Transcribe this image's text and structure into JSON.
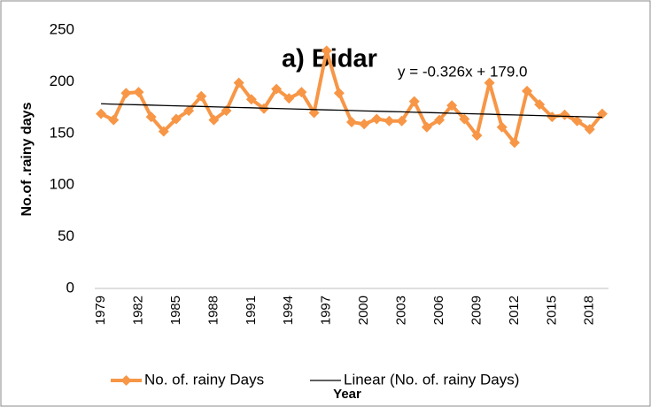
{
  "chart_data": {
    "type": "line",
    "title": "a) Bidar",
    "annotation": "y = -0.326x + 179.0",
    "x_label": "Year",
    "y_label": "No.of .rainy days",
    "categories": [
      "1979",
      null,
      null,
      "1982",
      null,
      null,
      "1985",
      null,
      null,
      "1988",
      null,
      null,
      "1991",
      null,
      null,
      "1994",
      null,
      null,
      "1997",
      null,
      null,
      "2000",
      null,
      null,
      "2003",
      null,
      null,
      "2006",
      null,
      null,
      "2009",
      null,
      null,
      "2012",
      null,
      null,
      "2015",
      null,
      null,
      "2018",
      null
    ],
    "series": [
      {
        "name": "No. of. rainy Days",
        "color": "#f79646",
        "marker": "diamond",
        "values": [
          169,
          163,
          189,
          190,
          166,
          152,
          164,
          172,
          186,
          163,
          172,
          199,
          183,
          174,
          193,
          184,
          190,
          170,
          230,
          189,
          161,
          159,
          164,
          162,
          162,
          181,
          156,
          163,
          177,
          164,
          148,
          199,
          156,
          141,
          191,
          178,
          166,
          168,
          162,
          154,
          169
        ]
      },
      {
        "name": "Linear (No. of. rainy Days)",
        "color": "#000000",
        "marker": "none",
        "values": [
          178.7,
          178.3,
          178.0,
          177.7,
          177.4,
          177.0,
          176.7,
          176.4,
          176.1,
          175.7,
          175.4,
          175.1,
          174.8,
          174.4,
          174.1,
          173.8,
          173.5,
          173.1,
          172.8,
          172.5,
          172.2,
          171.8,
          171.5,
          171.2,
          170.9,
          170.5,
          170.2,
          169.9,
          169.5,
          169.2,
          168.9,
          168.6,
          168.2,
          167.9,
          167.6,
          167.3,
          166.9,
          166.6,
          166.3,
          166.0,
          165.6
        ]
      }
    ],
    "ylim": [
      0,
      250
    ],
    "yticks": [
      0,
      50,
      100,
      150,
      200,
      250
    ],
    "grid": false,
    "legend": "bottom"
  }
}
